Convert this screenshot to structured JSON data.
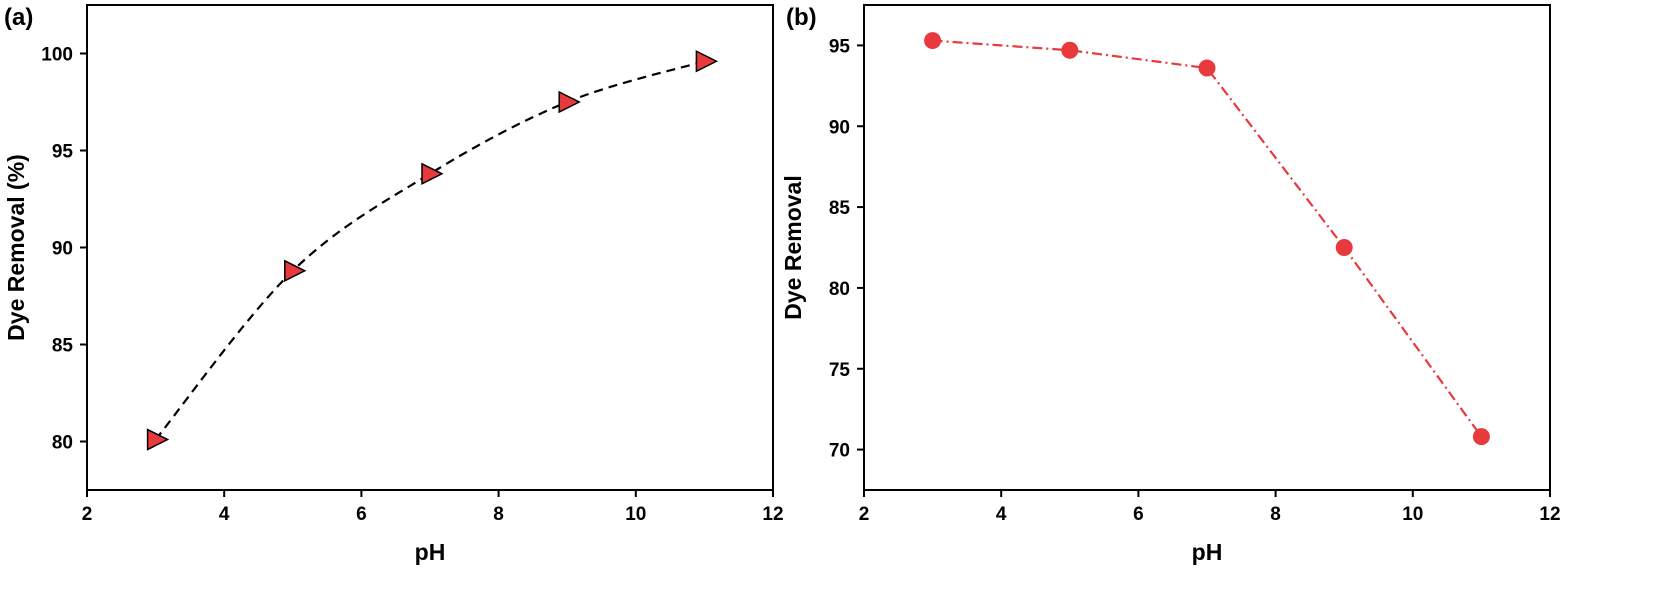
{
  "chart_data": [
    {
      "type": "line",
      "panel_label": "(a)",
      "xlabel": "pH",
      "ylabel": "Dye Removal (%)",
      "xlim": [
        2,
        12
      ],
      "ylim": [
        77.5,
        102.5
      ],
      "xticks": [
        2,
        4,
        6,
        8,
        10,
        12
      ],
      "yticks": [
        80,
        85,
        90,
        95,
        100
      ],
      "grid": false,
      "series": [
        {
          "x": [
            3,
            5,
            7,
            9,
            11
          ],
          "y": [
            80.1,
            88.8,
            93.8,
            97.5,
            99.6
          ],
          "marker": "triangle-right",
          "line_style": "dashed",
          "line_color": "#000000",
          "marker_color": "#e8393c"
        }
      ]
    },
    {
      "type": "line",
      "panel_label": "(b)",
      "xlabel": "pH",
      "ylabel": "Dye Removal",
      "xlim": [
        2,
        12
      ],
      "ylim": [
        67.5,
        97.5
      ],
      "xticks": [
        2,
        4,
        6,
        8,
        10,
        12
      ],
      "yticks": [
        70,
        75,
        80,
        85,
        90,
        95
      ],
      "grid": false,
      "series": [
        {
          "x": [
            3,
            5,
            7,
            9,
            11
          ],
          "y": [
            95.3,
            94.7,
            93.6,
            82.5,
            70.8
          ],
          "marker": "circle",
          "line_style": "dash-dot",
          "line_color": "#e8393c",
          "marker_color": "#e8393c"
        }
      ]
    }
  ]
}
